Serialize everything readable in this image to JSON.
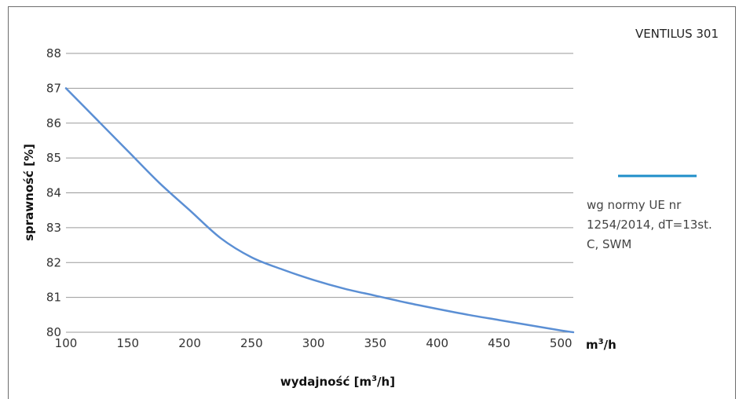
{
  "chart_data": {
    "type": "line",
    "model_label": "VENTILUS 301",
    "xlabel_main": "wydajność [m",
    "xlabel_sup": "3",
    "xlabel_end": "/h]",
    "x_unit_main": "m",
    "x_unit_sup": "3",
    "x_unit_end": "/h",
    "ylabel": "sprawność [%]",
    "xlim": [
      100,
      510
    ],
    "ylim": [
      80,
      88
    ],
    "x_ticks": [
      100,
      150,
      200,
      250,
      300,
      350,
      400,
      450,
      500
    ],
    "y_ticks": [
      80,
      81,
      82,
      83,
      84,
      85,
      86,
      87,
      88
    ],
    "grid": true,
    "series": [
      {
        "name": "",
        "color": "#5b8fd4",
        "x": [
          100,
          125,
          150,
          175,
          200,
          225,
          250,
          275,
          300,
          325,
          350,
          375,
          400,
          425,
          450,
          475,
          500,
          510
        ],
        "y": [
          87.0,
          86.1,
          85.2,
          84.3,
          83.5,
          82.7,
          82.15,
          81.8,
          81.5,
          81.25,
          81.05,
          80.85,
          80.67,
          80.5,
          80.35,
          80.2,
          80.05,
          80.0
        ]
      }
    ],
    "legend": {
      "line_color": "#1f8fc9",
      "text_lines": [
        "wg normy UE nr",
        "1254/2014, dT=13st.",
        "C, SWM"
      ]
    }
  }
}
